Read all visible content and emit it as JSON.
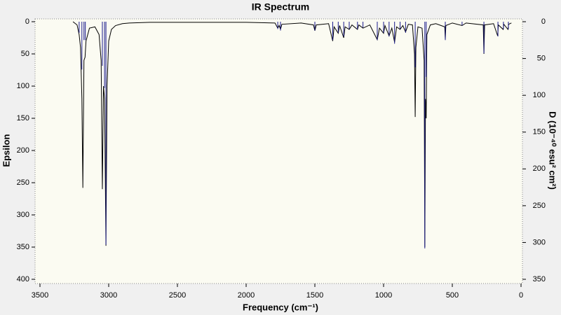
{
  "chart_data": {
    "type": "ir-spectrum",
    "title": "IR Spectrum",
    "x_label": "Frequency (cm⁻¹)",
    "y_label": "Epsilon",
    "y2_label": "D (10⁻⁴⁰ esu² cm²)",
    "xlim": [
      3500,
      0
    ],
    "xticks": [
      3500,
      3000,
      2500,
      2000,
      1500,
      1000,
      500,
      0
    ],
    "ylim": [
      0,
      400
    ],
    "yticks": [
      0,
      50,
      100,
      150,
      200,
      250,
      300,
      350,
      400
    ],
    "y2lim": [
      0,
      350
    ],
    "y2ticks": [
      0,
      50,
      100,
      150,
      200,
      250,
      300,
      350
    ],
    "series": [
      {
        "color": "#000000",
        "axis": "y",
        "style": "line",
        "x": [
          3260,
          3230,
          3215,
          3205,
          3195,
          3188,
          3180,
          3172,
          3165,
          3140,
          3100,
          3070,
          3055,
          3046,
          3038,
          3030,
          3020,
          3012,
          3000,
          2980,
          2950,
          2900,
          2850,
          2700,
          2000,
          1790,
          1770,
          1760,
          1750,
          1740,
          1600,
          1510,
          1500,
          1490,
          1400,
          1370,
          1360,
          1330,
          1320,
          1290,
          1280,
          1250,
          1230,
          1190,
          1180,
          1150,
          1100,
          1046,
          1030,
          1000,
          990,
          960,
          940,
          920,
          905,
          880,
          860,
          840,
          820,
          790,
          775,
          770,
          765,
          750,
          720,
          705,
          700,
          695,
          690,
          685,
          660,
          620,
          555,
          551,
          547,
          500,
          429,
          400,
          275,
          270,
          265,
          200,
          170,
          165,
          130,
          125,
          95,
          90,
          70
        ],
        "values": [
          0,
          5,
          20,
          40,
          120,
          258,
          60,
          55,
          30,
          10,
          8,
          20,
          60,
          260,
          100,
          120,
          348,
          100,
          30,
          12,
          6,
          3,
          2,
          1,
          1,
          2,
          10,
          6,
          12,
          4,
          2,
          5,
          14,
          5,
          3,
          30,
          8,
          18,
          6,
          25,
          8,
          12,
          5,
          12,
          5,
          10,
          5,
          28,
          10,
          18,
          6,
          22,
          10,
          32,
          8,
          12,
          6,
          16,
          4,
          5,
          50,
          148,
          40,
          8,
          10,
          60,
          350,
          120,
          150,
          20,
          5,
          3,
          8,
          28,
          6,
          2,
          6,
          2,
          5,
          50,
          5,
          3,
          22,
          5,
          12,
          4,
          12,
          4,
          2
        ]
      },
      {
        "color": "#1a1a8c",
        "axis": "y2",
        "style": "sticks",
        "x": [
          3215,
          3195,
          3180,
          3170,
          3046,
          3030,
          3020,
          1770,
          1750,
          1500,
          1370,
          1330,
          1290,
          1250,
          1190,
          1150,
          1046,
          1000,
          960,
          920,
          880,
          840,
          770,
          700,
          690,
          551,
          429,
          270,
          168,
          128,
          92
        ],
        "values": [
          15,
          65,
          25,
          25,
          60,
          90,
          303,
          10,
          12,
          12,
          25,
          15,
          20,
          10,
          10,
          8,
          25,
          15,
          20,
          30,
          10,
          15,
          62,
          308,
          75,
          25,
          5,
          43,
          20,
          10,
          10
        ]
      }
    ]
  }
}
